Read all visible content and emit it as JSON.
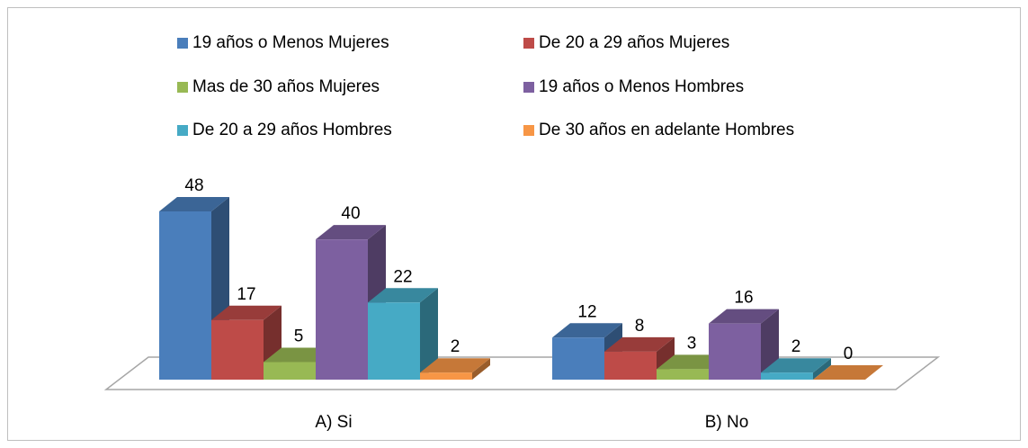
{
  "chart_data": {
    "type": "bar3d",
    "categories": [
      "A) Si",
      "B) No"
    ],
    "series": [
      {
        "name": "19 años o Menos Mujeres",
        "color": "#4a7ebb",
        "values": [
          48,
          12
        ]
      },
      {
        "name": "De 20 a 29 años Mujeres",
        "color": "#be4b48",
        "values": [
          17,
          8
        ]
      },
      {
        "name": "Mas de 30 años Mujeres",
        "color": "#98b954",
        "values": [
          5,
          3
        ]
      },
      {
        "name": "19 años o Menos Hombres",
        "color": "#7d60a0",
        "values": [
          40,
          16
        ]
      },
      {
        "name": "De 20 a 29 años Hombres",
        "color": "#46aac5",
        "values": [
          22,
          2
        ]
      },
      {
        "name": "De 30 años en adelante Hombres",
        "color": "#f79646",
        "values": [
          2,
          0
        ]
      }
    ],
    "legend": "top"
  }
}
